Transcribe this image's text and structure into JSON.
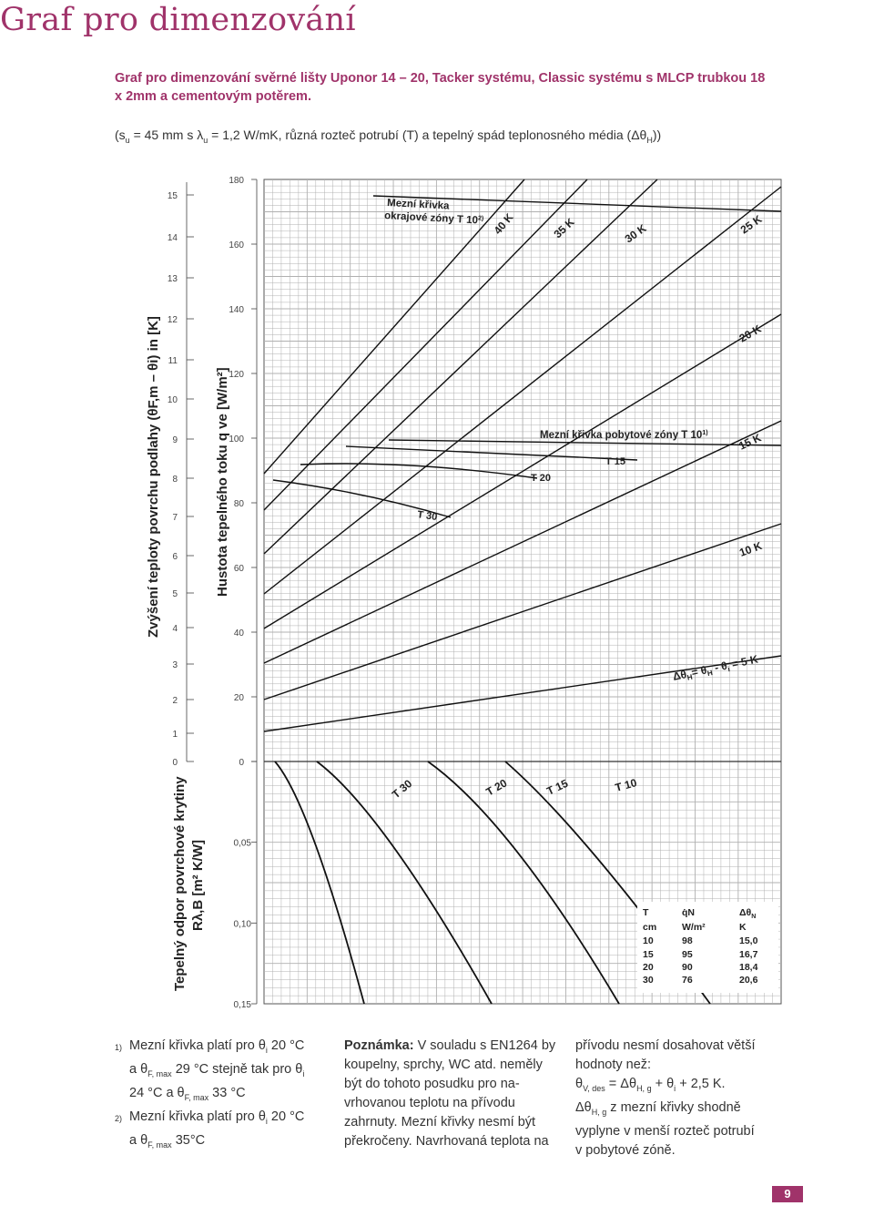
{
  "page": {
    "title": "Graf pro dimenzování",
    "subtitle": "Graf pro dimenzování svěrné lišty Uponor 14 – 20, Tacker systému, Classic systému s MLCP trubkou 18 x 2mm a cementovým potěrem.",
    "params": {
      "p1": "(s",
      "p1_sub": "u",
      "p2": " = 45 mm s λ",
      "p2_sub": "u",
      "p3": " = 1,2 W/mK, různá rozteč potrubí (T) a tepelný spád teplonosného média (Δθ",
      "p3_sub": "H",
      "p4": "))"
    },
    "page_number": "9"
  },
  "chart_data": {
    "type": "line",
    "y_axis_outer": {
      "label": "Zvýšení teploty povrchu podlahy (θF,m – θi) in [K]",
      "ticks": [
        "0",
        "1",
        "2",
        "3",
        "4",
        "5",
        "6",
        "7",
        "8",
        "9",
        "10",
        "11",
        "12",
        "13",
        "14",
        "15"
      ]
    },
    "y_axis_inner": {
      "label": "Hustota tepelného toku q ve [W/m²]",
      "ticks": [
        "0",
        "20",
        "40",
        "60",
        "80",
        "100",
        "120",
        "140",
        "160",
        "180"
      ],
      "range": [
        0,
        180
      ]
    },
    "y_axis_lower": {
      "label_line1": "Tepelný odpor povrchové krytiny",
      "label_line2": "Rλ,B [m² K/W]",
      "ticks": [
        "0",
        "0,05",
        "0,10",
        "0,15"
      ],
      "range": [
        0,
        0.15
      ]
    },
    "series": [
      {
        "name": "Δθ",
        "label": "Δθ",
        "q_at_R0": 9,
        "q_at_R015": 36
      },
      {
        "name": "10 K",
        "label": "10 K",
        "q_at_R0": 18,
        "q_at_R015": 66
      },
      {
        "name": "15 K",
        "label": "15 K",
        "q_at_R0": 27,
        "q_at_R015": 100
      },
      {
        "name": "20 K",
        "label": "20 K",
        "q_at_R0": 36,
        "q_at_R015": 132
      },
      {
        "name": "25 K",
        "label": "25 K",
        "q_at_R0": 45,
        "q_at_R015": 166
      }
    ],
    "upper_lines": [
      {
        "name": "40 K",
        "label": "40 K"
      },
      {
        "name": "35 K",
        "label": "35 K"
      },
      {
        "name": "30 K",
        "label": "30 K"
      }
    ],
    "delta_label_main": "Δθ",
    "delta_label_eq": "= θ",
    "delta_label_h": "H",
    "delta_label_minus": " - θ",
    "delta_label_i": "i",
    "delta_label_end": " = 5 K",
    "limit_curves": {
      "living": {
        "label": "Mezní křivka pobytové zóny T 10",
        "sup": "1)"
      },
      "edge": {
        "label_line1": "Mezní křivka",
        "label_line2": "okrajové zóny T 10",
        "sup": "2)"
      }
    },
    "spacing_labels": [
      "T 30",
      "T 20",
      "T 15"
    ],
    "lower_curve_labels": [
      "T 30",
      "T 20",
      "T 15",
      "T 10"
    ],
    "table": {
      "headers": [
        "T",
        "q̇N",
        "Δθ"
      ],
      "header_sub": "N",
      "units": [
        "cm",
        "W/m²",
        "K"
      ],
      "rows": [
        [
          "10",
          "98",
          "15,0"
        ],
        [
          "15",
          "95",
          "16,7"
        ],
        [
          "20",
          "90",
          "18,4"
        ],
        [
          "30",
          "76",
          "20,6"
        ]
      ]
    }
  },
  "notes": {
    "col1": {
      "fn1_mark": "1)",
      "fn1_a": "Mezní křivka platí pro θ",
      "fn1_b": "i",
      "fn1_c": " 20 °C",
      "fn1_d": "a θ",
      "fn1_e": "F, max",
      "fn1_f": " 29 °C stejně tak pro θ",
      "fn1_g": "i",
      "fn1_h": "24 °C a θ",
      "fn1_i": "F, max",
      "fn1_j": " 33 °C",
      "fn2_mark": "2)",
      "fn2_a": "Mezní křivka platí pro θ",
      "fn2_b": "i",
      "fn2_c": " 20 °C",
      "fn2_d": "a θ",
      "fn2_e": "F, max",
      "fn2_f": " 35°C"
    },
    "col2": {
      "bold": "Poznámka:",
      "l1": " V souladu s EN1264 by",
      "l2": "koupelny, sprchy, WC atd. neměly",
      "l3": "být do tohoto posudku pro na-",
      "l4": "vrhovanou teplotu na přívodu",
      "l5": "zahrnuty. Mezní křivky nesmí být",
      "l6": "překročeny. Navrhovaná teplota na"
    },
    "col3": {
      "l1": "přívodu nesmí dosahovat větší",
      "l2": "hodnoty než:",
      "l3a": "θ",
      "l3b": "V, des",
      "l3c": " = Δθ",
      "l3d": "H, g",
      "l3e": " + θ",
      "l3f": "i",
      "l3g": " + 2,5 K.",
      "l4a": "Δθ",
      "l4b": "H, g",
      "l4c": " z mezní křivky shodně",
      "l5": "vyplyne v menší rozteč potrubí",
      "l6": "v pobytové zóně."
    }
  },
  "colors": {
    "accent": "#a0336a",
    "grid": "#9a9a9a",
    "line": "#111111"
  }
}
